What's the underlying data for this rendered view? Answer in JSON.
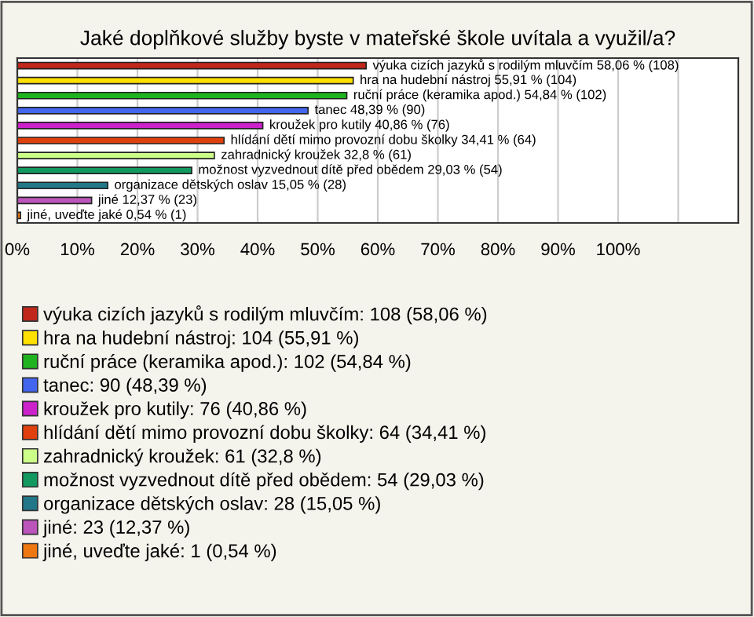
{
  "chart_data": {
    "type": "bar",
    "orientation": "horizontal",
    "title": "Jaké doplňkové služby byste v mateřské škole uvítala a využil/a?",
    "categories": [
      null,
      null,
      null,
      null,
      null,
      null,
      null,
      null,
      null,
      null,
      null
    ],
    "series": [
      {
        "name": "výuka cizích jazyků s rodilým mluvčím: 108 (58,06 %)",
        "color": "#c0281b",
        "values": [
          58.06,
          null,
          null,
          null,
          null,
          null,
          null,
          null,
          null,
          null,
          null
        ],
        "value_labels": [
          "výuka cizích jazyků s rodilým mluvčím 58,06 % (108)",
          null,
          null,
          null,
          null,
          null,
          null,
          null,
          null,
          null,
          null
        ]
      },
      {
        "name": "hra na hudební nástroj: 104 (55,91 %)",
        "color": "#ffe000",
        "values": [
          null,
          55.91,
          null,
          null,
          null,
          null,
          null,
          null,
          null,
          null,
          null
        ],
        "value_labels": [
          null,
          "hra na hudební nástroj 55,91 % (104)",
          null,
          null,
          null,
          null,
          null,
          null,
          null,
          null,
          null
        ]
      },
      {
        "name": "ruční práce (keramika apod.): 102 (54,84 %)",
        "color": "#1fb31f",
        "values": [
          null,
          null,
          54.84,
          null,
          null,
          null,
          null,
          null,
          null,
          null,
          null
        ],
        "value_labels": [
          null,
          null,
          "ruční práce (keramika apod.) 54,84 % (102)",
          null,
          null,
          null,
          null,
          null,
          null,
          null,
          null
        ]
      },
      {
        "name": "tanec: 90 (48,39 %)",
        "color": "#4466ee",
        "values": [
          null,
          null,
          null,
          48.39,
          null,
          null,
          null,
          null,
          null,
          null,
          null
        ],
        "value_labels": [
          null,
          null,
          null,
          "tanec 48,39 % (90)",
          null,
          null,
          null,
          null,
          null,
          null,
          null
        ]
      },
      {
        "name": "kroužek pro kutily: 76 (40,86 %)",
        "color": "#cc22cc",
        "values": [
          null,
          null,
          null,
          null,
          40.86,
          null,
          null,
          null,
          null,
          null,
          null
        ],
        "value_labels": [
          null,
          null,
          null,
          null,
          "kroužek pro kutily 40,86 % (76)",
          null,
          null,
          null,
          null,
          null,
          null
        ]
      },
      {
        "name": "hlídání dětí mimo provozní dobu školky: 64 (34,41 %)",
        "color": "#e0400e",
        "values": [
          null,
          null,
          null,
          null,
          null,
          34.41,
          null,
          null,
          null,
          null,
          null
        ],
        "value_labels": [
          null,
          null,
          null,
          null,
          null,
          "hlídání dětí mimo provozní dobu školky 34,41 % (64)",
          null,
          null,
          null,
          null,
          null
        ]
      },
      {
        "name": "zahradnický kroužek: 61 (32,8 %)",
        "color": "#ccff88",
        "values": [
          null,
          null,
          null,
          null,
          null,
          null,
          32.8,
          null,
          null,
          null,
          null
        ],
        "value_labels": [
          null,
          null,
          null,
          null,
          null,
          null,
          "zahradnický kroužek 32,8 % (61)",
          null,
          null,
          null,
          null
        ]
      },
      {
        "name": "možnost vyzvednout dítě před obědem: 54 (29,03 %)",
        "color": "#119960",
        "values": [
          null,
          null,
          null,
          null,
          null,
          null,
          null,
          29.03,
          null,
          null,
          null
        ],
        "value_labels": [
          null,
          null,
          null,
          null,
          null,
          null,
          null,
          "možnost vyzvednout dítě před obědem 29,03 % (54)",
          null,
          null,
          null
        ]
      },
      {
        "name": "organizace dětských oslav: 28 (15,05 %)",
        "color": "#227788",
        "values": [
          null,
          null,
          null,
          null,
          null,
          null,
          null,
          null,
          15.05,
          null,
          null
        ],
        "value_labels": [
          null,
          null,
          null,
          null,
          null,
          null,
          null,
          null,
          "organizace dětských oslav 15,05 % (28)",
          null,
          null
        ]
      },
      {
        "name": "jiné: 23 (12,37 %)",
        "color": "#bb55bb",
        "values": [
          null,
          null,
          null,
          null,
          null,
          null,
          null,
          null,
          null,
          12.37,
          null
        ],
        "value_labels": [
          null,
          null,
          null,
          null,
          null,
          null,
          null,
          null,
          null,
          "jiné 12,37 % (23)",
          null
        ]
      },
      {
        "name": "jiné, uveďte jaké: 1 (0,54 %)",
        "color": "#ee7711",
        "values": [
          null,
          null,
          null,
          null,
          null,
          null,
          null,
          null,
          null,
          null,
          0.54
        ],
        "value_labels": [
          null,
          null,
          null,
          null,
          null,
          null,
          null,
          null,
          null,
          null,
          "jiné, uveďte jaké 0,54 % (1)"
        ]
      }
    ],
    "xlim": [
      0,
      120
    ],
    "xticks": [
      {
        "value": 0,
        "label": "0%"
      },
      {
        "value": 10,
        "label": "10%"
      },
      {
        "value": 20,
        "label": "20%"
      },
      {
        "value": 30,
        "label": "30%"
      },
      {
        "value": 40,
        "label": "40%"
      },
      {
        "value": 50,
        "label": "50%"
      },
      {
        "value": 60,
        "label": "60%"
      },
      {
        "value": 70,
        "label": "70%"
      },
      {
        "value": 80,
        "label": "80%"
      },
      {
        "value": 90,
        "label": "90%"
      },
      {
        "value": 100,
        "label": "100%"
      },
      {
        "value": 110,
        "label": null
      }
    ],
    "grid": "x",
    "legend": "bottom"
  }
}
